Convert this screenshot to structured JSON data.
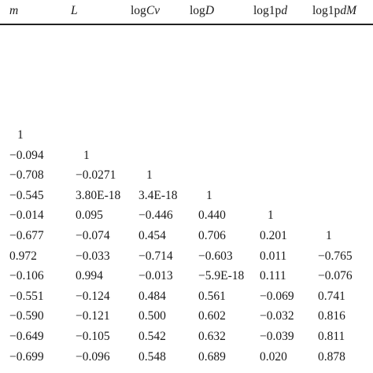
{
  "table": {
    "headers": [
      {
        "pre": "",
        "ital": "m",
        "post": ""
      },
      {
        "pre": "",
        "ital": "L",
        "post": ""
      },
      {
        "pre": "log",
        "ital": "Cv",
        "post": ""
      },
      {
        "pre": "log",
        "ital": "D",
        "post": ""
      },
      {
        "pre": "log1p",
        "ital": "d",
        "post": ""
      },
      {
        "pre": "log1p",
        "ital": "dM",
        "post": ""
      }
    ],
    "rows": [
      [
        "1",
        "",
        "",
        "",
        "",
        ""
      ],
      [
        "−0.094",
        "1",
        "",
        "",
        "",
        ""
      ],
      [
        "−0.708",
        "−0.0271",
        "1",
        "",
        "",
        ""
      ],
      [
        "−0.545",
        "3.80E-18",
        "3.4E-18",
        "1",
        "",
        ""
      ],
      [
        "−0.014",
        "0.095",
        "−0.446",
        "0.440",
        "1",
        ""
      ],
      [
        "−0.677",
        "−0.074",
        "0.454",
        "0.706",
        "0.201",
        "1"
      ],
      [
        "0.972",
        "−0.033",
        "−0.714",
        "−0.603",
        "0.011",
        "−0.765"
      ],
      [
        "−0.106",
        "0.994",
        "−0.013",
        "−5.9E-18",
        "0.111",
        "−0.076"
      ],
      [
        "−0.551",
        "−0.124",
        "0.484",
        "0.561",
        "−0.069",
        "0.741"
      ],
      [
        "−0.590",
        "−0.121",
        "0.500",
        "0.602",
        "−0.032",
        "0.816"
      ],
      [
        "−0.649",
        "−0.105",
        "0.542",
        "0.632",
        "−0.039",
        "0.811"
      ],
      [
        "−0.699",
        "−0.096",
        "0.548",
        "0.689",
        "0.020",
        "0.878"
      ]
    ]
  }
}
